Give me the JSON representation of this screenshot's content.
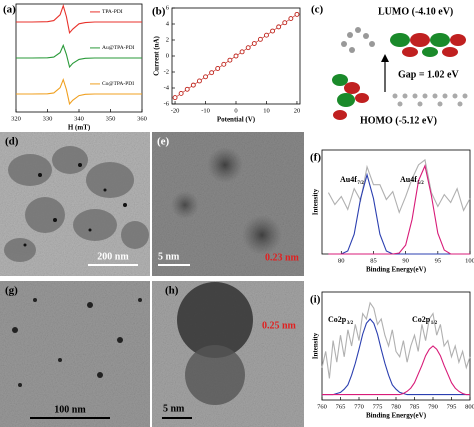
{
  "chart_data": [
    {
      "type": "line",
      "label": "(a)",
      "x_label": "H (mT)",
      "separate_traces": true,
      "legend": "inline",
      "x": [
        320,
        325,
        330,
        332,
        334,
        335,
        336,
        337,
        338,
        340,
        342,
        345,
        350,
        355,
        360
      ],
      "xlim": [
        320,
        360
      ],
      "xticks": [
        320,
        330,
        340,
        350,
        360
      ],
      "ylim": [
        -1,
        1
      ],
      "series": [
        {
          "name": "TPA-PDI",
          "color": "#e8322b",
          "values": [
            0,
            0,
            0.02,
            0.08,
            0.4,
            0.9,
            0.3,
            -0.6,
            -0.4,
            -0.1,
            -0.03,
            0,
            0,
            0,
            0
          ]
        },
        {
          "name": "Au@TPA-PDI",
          "color": "#2a9a3a",
          "values": [
            0,
            0,
            0.01,
            0.05,
            0.3,
            0.7,
            0.2,
            -0.5,
            -0.3,
            -0.08,
            -0.02,
            0,
            0,
            0,
            0
          ]
        },
        {
          "name": "Co@TPA-PDI",
          "color": "#f0a020",
          "values": [
            0,
            0,
            0.01,
            0.06,
            0.35,
            0.8,
            0.25,
            -0.55,
            -0.35,
            -0.09,
            -0.02,
            0,
            0,
            0,
            0
          ]
        }
      ]
    },
    {
      "type": "line",
      "label": "(b)",
      "x_label": "Potential (V)",
      "y_label": "Current (nA)",
      "x": [
        -20,
        -18,
        -16,
        -14,
        -12,
        -10,
        -8,
        -6,
        -4,
        -2,
        0,
        2,
        4,
        6,
        8,
        10,
        12,
        14,
        16,
        18,
        20
      ],
      "xlim": [
        -21,
        21
      ],
      "xticks": [
        -20,
        -10,
        0,
        10,
        20
      ],
      "ylim": [
        -6,
        6
      ],
      "yticks": [
        -6,
        -4,
        -2,
        0,
        2,
        4,
        6
      ],
      "series": [
        {
          "color": "#c0241c",
          "marker": true,
          "values": [
            -5.2,
            -4.68,
            -4.16,
            -3.64,
            -3.12,
            -2.6,
            -2.08,
            -1.56,
            -1.04,
            -0.52,
            0,
            0.52,
            1.04,
            1.56,
            2.08,
            2.6,
            3.12,
            3.64,
            4.16,
            4.68,
            5.2
          ]
        }
      ]
    },
    {
      "type": "line",
      "label": "(f)",
      "x_label": "Binding Energy(eV)",
      "y_label": "Intensity",
      "x": [
        78,
        79,
        80,
        81,
        82,
        83,
        84,
        85,
        86,
        87,
        88,
        89,
        90,
        91,
        92,
        93,
        94,
        95,
        96,
        97,
        98,
        99,
        100
      ],
      "xlim": [
        77,
        100
      ],
      "xticks": [
        80,
        85,
        90,
        95,
        100
      ],
      "ylim": [
        0,
        1.05
      ],
      "annotations": [
        {
          "text": "Au4f",
          "sub": "7/2"
        },
        {
          "text": "Au4f",
          "sub": "5/2"
        }
      ],
      "series": [
        {
          "color": "#b0b0b0",
          "values": [
            0.62,
            0.5,
            0.58,
            0.45,
            0.66,
            0.54,
            0.88,
            0.7,
            0.7,
            0.55,
            0.63,
            0.42,
            0.58,
            0.76,
            0.9,
            0.95,
            0.62,
            0.48,
            0.6,
            0.52,
            0.66,
            0.44,
            0.56
          ]
        },
        {
          "color": "#2b3fb0",
          "values": [
            0,
            0,
            0,
            0.03,
            0.2,
            0.56,
            0.8,
            0.56,
            0.2,
            0.03,
            0,
            0,
            0,
            0,
            0,
            0,
            0,
            0,
            0,
            0,
            0,
            0,
            0
          ]
        },
        {
          "color": "#d81b78",
          "values": [
            0,
            0,
            0,
            0,
            0,
            0,
            0,
            0,
            0,
            0,
            0,
            0.01,
            0.09,
            0.35,
            0.74,
            0.89,
            0.59,
            0.21,
            0.04,
            0,
            0,
            0,
            0
          ]
        }
      ]
    },
    {
      "type": "line",
      "label": "(i)",
      "x_label": "Binding Energy(eV)",
      "y_label": "Intensity",
      "x": [
        760,
        761,
        762,
        763,
        764,
        765,
        766,
        767,
        768,
        769,
        770,
        771,
        772,
        773,
        774,
        775,
        776,
        777,
        778,
        779,
        780,
        781,
        782,
        783,
        784,
        785,
        786,
        787,
        788,
        789,
        790,
        791,
        792,
        793,
        794,
        795,
        796,
        797,
        798,
        799,
        800
      ],
      "xlim": [
        760,
        800
      ],
      "xticks": [
        760,
        765,
        770,
        775,
        780,
        785,
        790,
        795,
        800
      ],
      "ylim": [
        0,
        1
      ],
      "annotations": [
        {
          "text": "Co2p",
          "sub": "3/2"
        },
        {
          "text": "Co2p",
          "sub": "1/2"
        }
      ],
      "series": [
        {
          "color": "#b0b0b0",
          "values": [
            0.3,
            0.45,
            0.2,
            0.55,
            0.35,
            0.6,
            0.4,
            0.65,
            0.5,
            0.7,
            0.55,
            0.8,
            0.75,
            0.9,
            0.85,
            0.7,
            0.75,
            0.6,
            0.5,
            0.65,
            0.45,
            0.4,
            0.55,
            0.35,
            0.5,
            0.6,
            0.45,
            0.7,
            0.55,
            0.75,
            0.8,
            0.6,
            0.7,
            0.5,
            0.55,
            0.4,
            0.5,
            0.35,
            0.45,
            0.3,
            0.4
          ]
        },
        {
          "color": "#2b3fb0",
          "values": [
            0.05,
            0.05,
            0.05,
            0.05,
            0.06,
            0.07,
            0.1,
            0.14,
            0.23,
            0.34,
            0.47,
            0.61,
            0.71,
            0.75,
            0.71,
            0.61,
            0.47,
            0.34,
            0.23,
            0.14,
            0.1,
            0.07,
            0.06,
            0.05,
            0.05,
            0.05,
            0.05,
            0.05,
            0.05,
            0.05,
            0.05,
            0.05,
            0.05,
            0.05,
            0.05,
            0.05,
            0.05,
            0.05,
            0.05,
            0.05,
            0.05
          ]
        },
        {
          "color": "#d81b78",
          "values": [
            0.05,
            0.05,
            0.05,
            0.05,
            0.05,
            0.05,
            0.05,
            0.05,
            0.05,
            0.05,
            0.05,
            0.05,
            0.05,
            0.05,
            0.05,
            0.05,
            0.05,
            0.05,
            0.05,
            0.05,
            0.05,
            0.05,
            0.06,
            0.08,
            0.11,
            0.16,
            0.24,
            0.32,
            0.41,
            0.47,
            0.5,
            0.47,
            0.41,
            0.32,
            0.24,
            0.16,
            0.11,
            0.08,
            0.06,
            0.05,
            0.05
          ]
        }
      ]
    }
  ],
  "images": [
    {
      "label": "(c)",
      "lumo": "LUMO (-4.10 eV)",
      "gap": "Gap = 1.02 eV",
      "homo": "HOMO (-5.12 eV)"
    },
    {
      "label": "(d)",
      "scale_bar": "200 nm"
    },
    {
      "label": "(e)",
      "scale_bar": "5 nm",
      "lattice": "0.23 nm"
    },
    {
      "label": "(g)",
      "scale_bar": "100 nm"
    },
    {
      "label": "(h)",
      "scale_bar": "5 nm",
      "lattice": "0.25 nm"
    }
  ]
}
